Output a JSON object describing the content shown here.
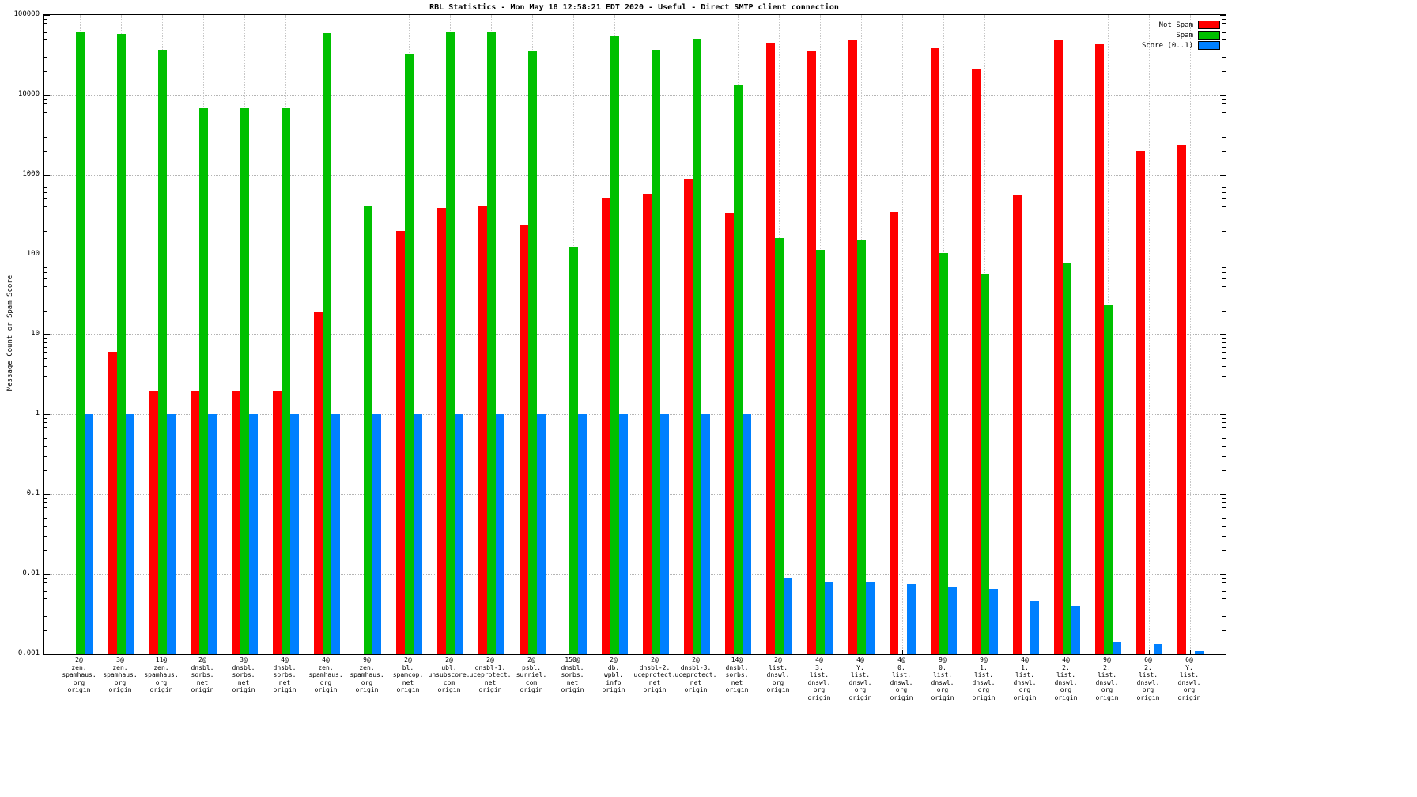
{
  "title": "RBL Statistics - Mon May 18 12:58:21 EDT 2020 - Useful - Direct SMTP client connection",
  "ylabel": "Message Count or Spam Score",
  "legend": [
    {
      "label": "Not Spam",
      "color": "#ff0000"
    },
    {
      "label": "Spam",
      "color": "#00c000"
    },
    {
      "label": "Score (0..1)",
      "color": "#0080ff"
    }
  ],
  "chart_data": {
    "type": "bar",
    "scale": "log-y",
    "grid": true,
    "legend_position": "top-right",
    "ylim": [
      0.001,
      100000
    ],
    "yticks": [
      "100000",
      "10000",
      "1000",
      "100",
      "10",
      "1",
      "0.1",
      "0.01",
      "0.001"
    ],
    "categories": [
      [
        "2@",
        "zen.",
        "spamhaus.",
        "org",
        "origin"
      ],
      [
        "3@",
        "zen.",
        "spamhaus.",
        "org",
        "origin"
      ],
      [
        "11@",
        "zen.",
        "spamhaus.",
        "org",
        "origin"
      ],
      [
        "2@",
        "dnsbl.",
        "sorbs.",
        "net",
        "origin"
      ],
      [
        "3@",
        "dnsbl.",
        "sorbs.",
        "net",
        "origin"
      ],
      [
        "4@",
        "dnsbl.",
        "sorbs.",
        "net",
        "origin"
      ],
      [
        "4@",
        "zen.",
        "spamhaus.",
        "org",
        "origin"
      ],
      [
        "9@",
        "zen.",
        "spamhaus.",
        "org",
        "origin"
      ],
      [
        "2@",
        "bl.",
        "spamcop.",
        "net",
        "origin"
      ],
      [
        "2@",
        "ubl.",
        "unsubscore.",
        "com",
        "origin"
      ],
      [
        "2@",
        "dnsbl-1.",
        "uceprotect.",
        "net",
        "origin"
      ],
      [
        "2@",
        "psbl.",
        "surriel.",
        "com",
        "origin"
      ],
      [
        "150@",
        "dnsbl.",
        "sorbs.",
        "net",
        "origin"
      ],
      [
        "2@",
        "db.",
        "wpbl.",
        "info",
        "origin"
      ],
      [
        "2@",
        "dnsbl-2.",
        "uceprotect.",
        "net",
        "origin"
      ],
      [
        "2@",
        "dnsbl-3.",
        "uceprotect.",
        "net",
        "origin"
      ],
      [
        "14@",
        "dnsbl.",
        "sorbs.",
        "net",
        "origin"
      ],
      [
        "2@",
        "list.",
        "dnswl.",
        "org",
        "origin"
      ],
      [
        "4@",
        "3.",
        "list.",
        "dnswl.",
        "org",
        "origin"
      ],
      [
        "4@",
        "Y.",
        "list.",
        "dnswl.",
        "org",
        "origin"
      ],
      [
        "4@",
        "0.",
        "list.",
        "dnswl.",
        "org",
        "origin"
      ],
      [
        "9@",
        "0.",
        "list.",
        "dnswl.",
        "org",
        "origin"
      ],
      [
        "9@",
        "1.",
        "list.",
        "dnswl.",
        "org",
        "origin"
      ],
      [
        "4@",
        "1.",
        "list.",
        "dnswl.",
        "org",
        "origin"
      ],
      [
        "4@",
        "2.",
        "list.",
        "dnswl.",
        "org",
        "origin"
      ],
      [
        "9@",
        "2.",
        "list.",
        "dnswl.",
        "org",
        "origin"
      ],
      [
        "6@",
        "2.",
        "list.",
        "dnswl.",
        "org",
        "origin"
      ],
      [
        "6@",
        "Y.",
        "list.",
        "dnswl.",
        "org",
        "origin"
      ]
    ],
    "series": [
      {
        "name": "Not Spam",
        "color": "#ff0000",
        "values": [
          0,
          6,
          2,
          2,
          2,
          2,
          19,
          0,
          200,
          380,
          410,
          240,
          0,
          500,
          580,
          900,
          330,
          45000,
          36000,
          49000,
          340,
          38000,
          21000,
          550,
          48000,
          43000,
          2000,
          2300
        ]
      },
      {
        "name": "Spam",
        "color": "#00c000",
        "values": [
          62000,
          58000,
          37000,
          7000,
          7000,
          7000,
          59000,
          400,
          33000,
          62000,
          62000,
          36000,
          125,
          54000,
          37000,
          50000,
          13500,
          160,
          115,
          155,
          0,
          105,
          57,
          0,
          78,
          23,
          0,
          0
        ]
      },
      {
        "name": "Score (0..1)",
        "color": "#0080ff",
        "values": [
          1,
          1,
          1,
          1,
          1,
          1,
          1,
          1,
          1,
          1,
          1,
          1,
          1,
          1,
          1,
          1,
          1,
          0.009,
          0.008,
          0.008,
          0.0075,
          0.007,
          0.0065,
          0.0046,
          0.004,
          0.0014,
          0.0013,
          0.0011
        ]
      }
    ]
  }
}
